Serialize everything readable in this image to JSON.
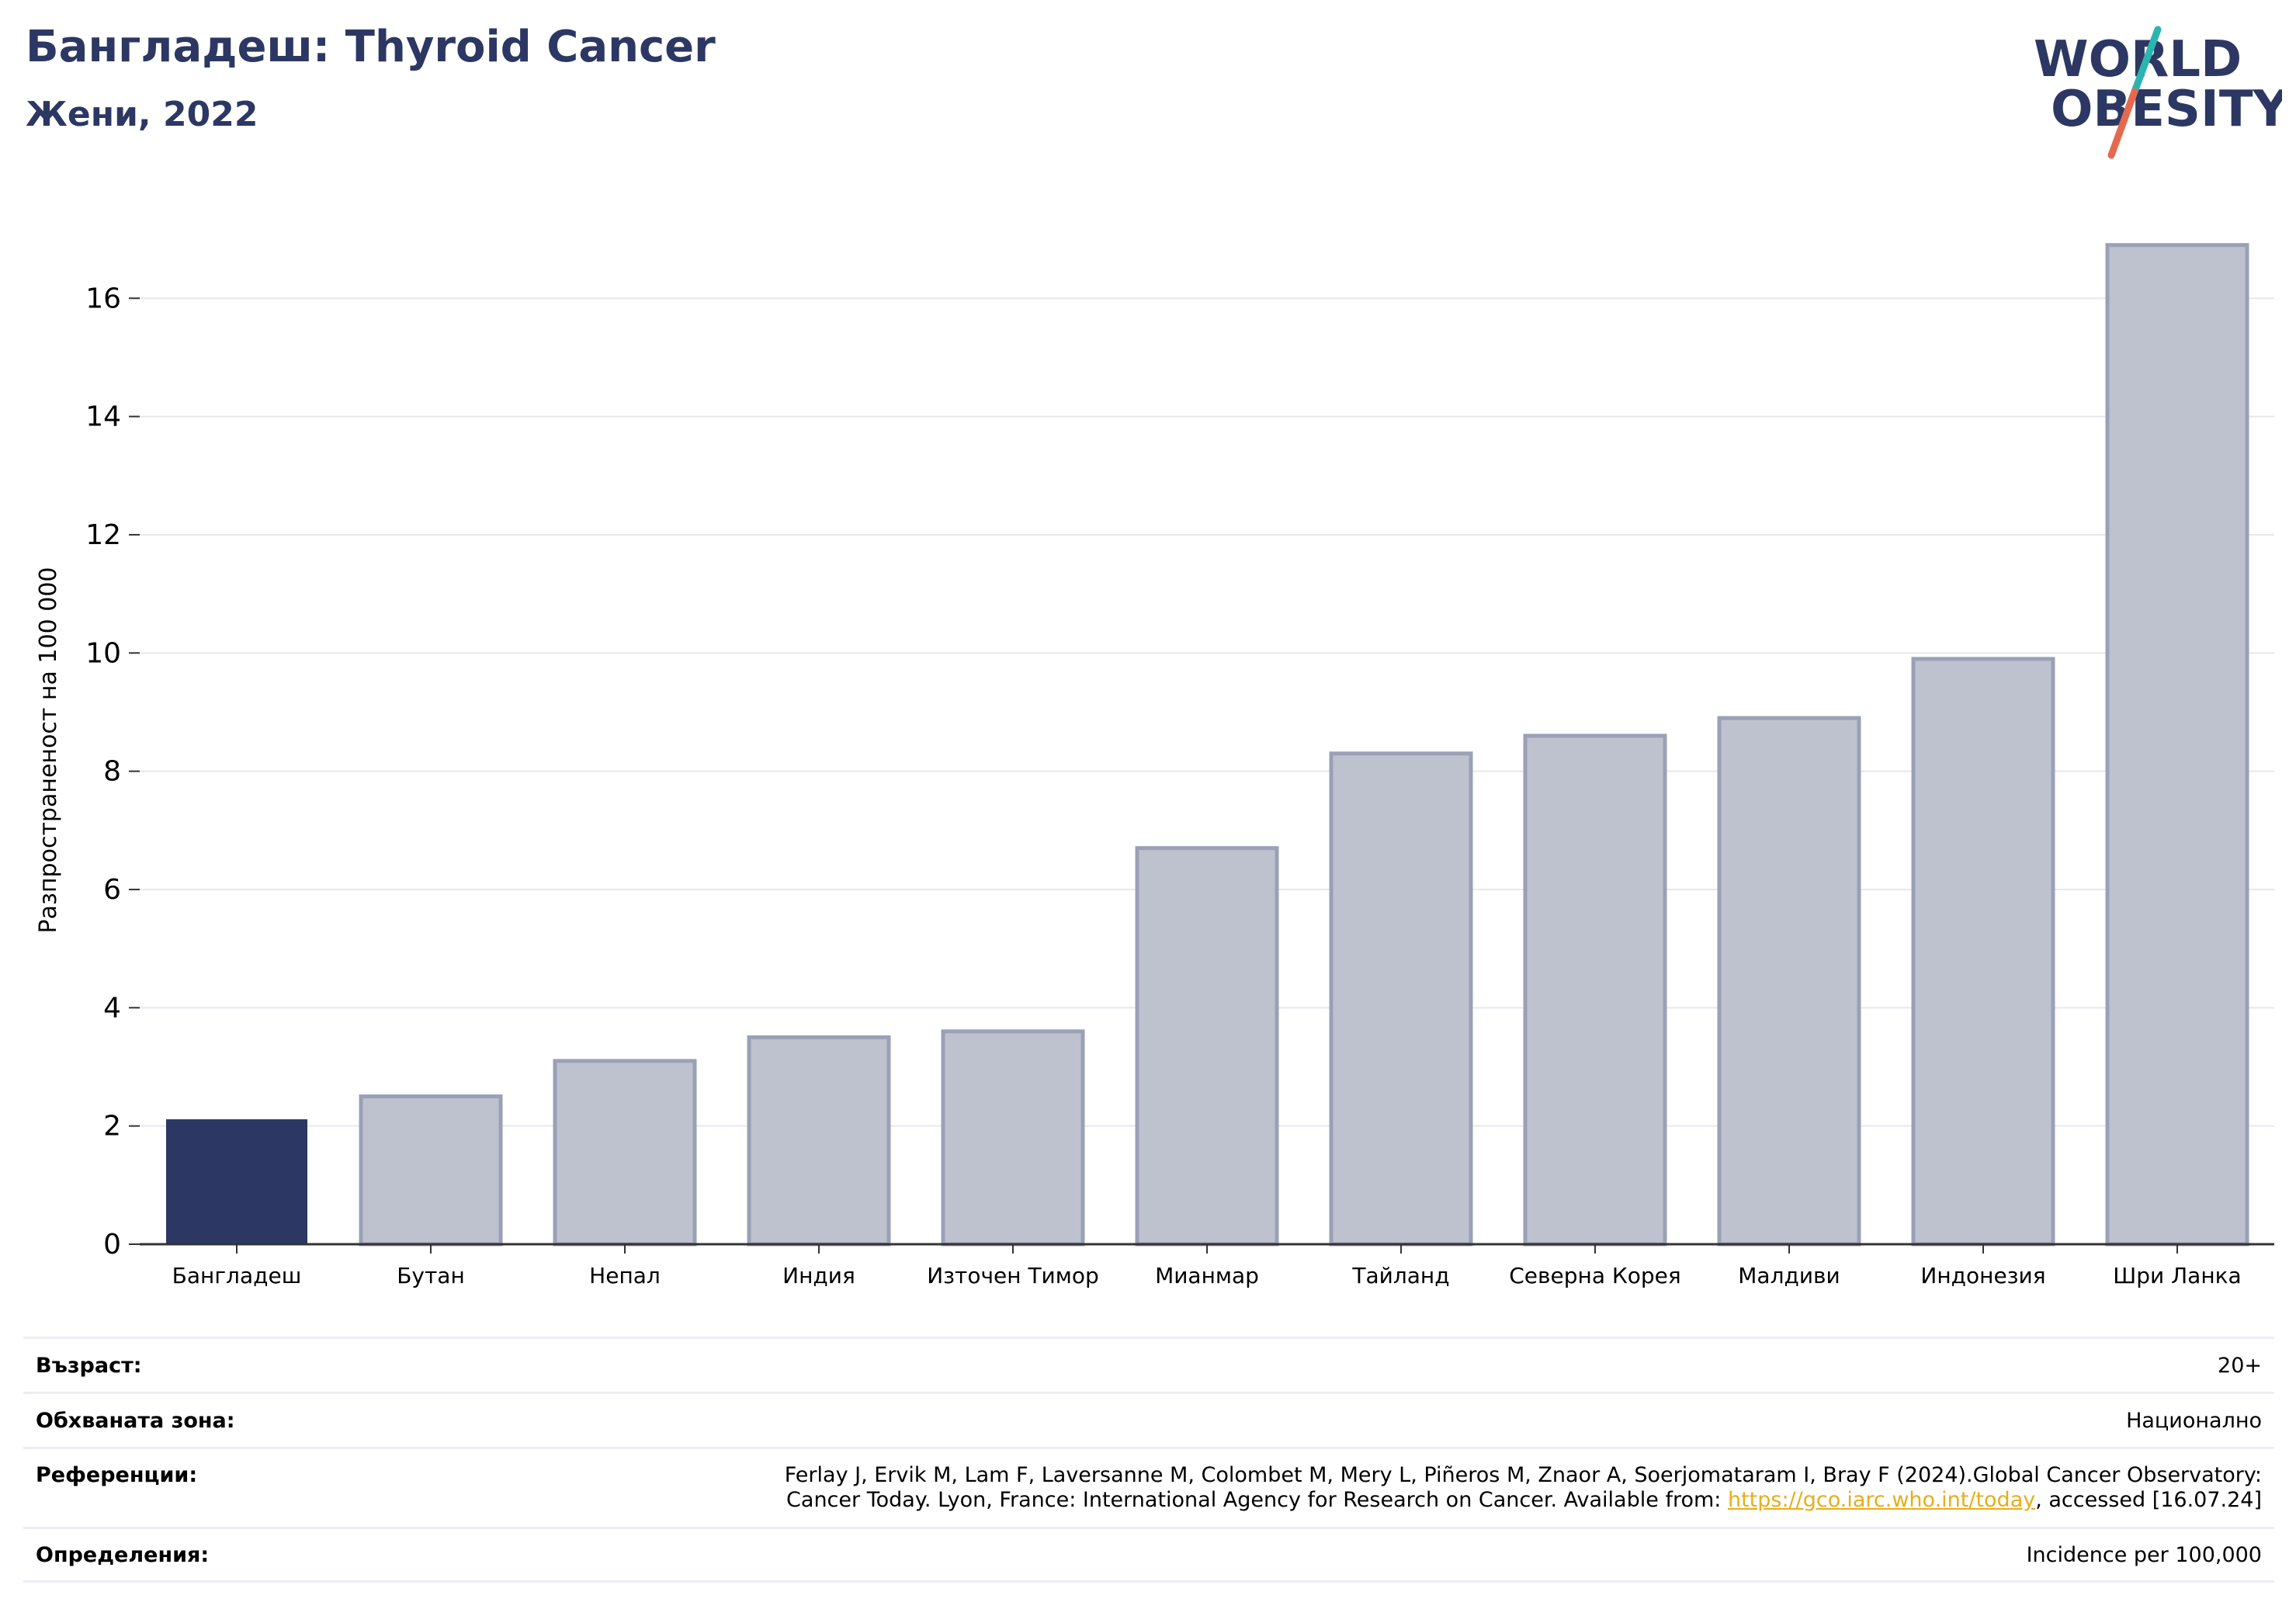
{
  "header": {
    "title": "Бангладеш: Thyroid Cancer",
    "subtitle": "Жени, 2022"
  },
  "logo": {
    "line1": "WORLD",
    "line2": "OBESITY"
  },
  "colors": {
    "highlight_bar": "#2c3863",
    "other_bar_fill": "#bec2cf",
    "other_bar_stroke": "#9aa0b6",
    "title": "#2c3863",
    "link": "#e8ad1a",
    "logo_teal": "#2bb5b0",
    "logo_red": "#e5694e"
  },
  "chart_data": {
    "type": "bar",
    "categories": [
      "Бангладеш",
      "Бутан",
      "Непал",
      "Индия",
      "Източен Тимор",
      "Мианмар",
      "Тайланд",
      "Северна Корея",
      "Малдиви",
      "Индонезия",
      "Шри Ланка"
    ],
    "values": [
      2.1,
      2.5,
      3.1,
      3.5,
      3.6,
      6.7,
      8.3,
      8.6,
      8.9,
      9.9,
      16.9
    ],
    "highlight": "Бангладеш",
    "ylabel": "Разпространеност  на 100 000",
    "xlabel": "",
    "ylim": [
      0,
      17.5
    ],
    "yticks": [
      0,
      2,
      4,
      6,
      8,
      10,
      12,
      14,
      16
    ],
    "grid": true
  },
  "info": {
    "age_label": "Възраст:",
    "age_value": "20+",
    "area_label": "Обхваната зона:",
    "area_value": "Национално",
    "ref_label": "Референции:",
    "ref_line1": "Ferlay J, Ervik M, Lam F, Laversanne M, Colombet M, Mery L, Piñeros M, Znaor A, Soerjomataram I, Bray F (2024).Global Cancer Observatory:",
    "ref_line2_pre": "Cancer Today. Lyon, France: International Agency for Research on Cancer. Available from: ",
    "ref_link": "https://gco.iarc.who.int/today",
    "ref_line2_post": ", accessed [16.07.24]",
    "def_label": "Определения:",
    "def_value": "Incidence per 100,000"
  }
}
